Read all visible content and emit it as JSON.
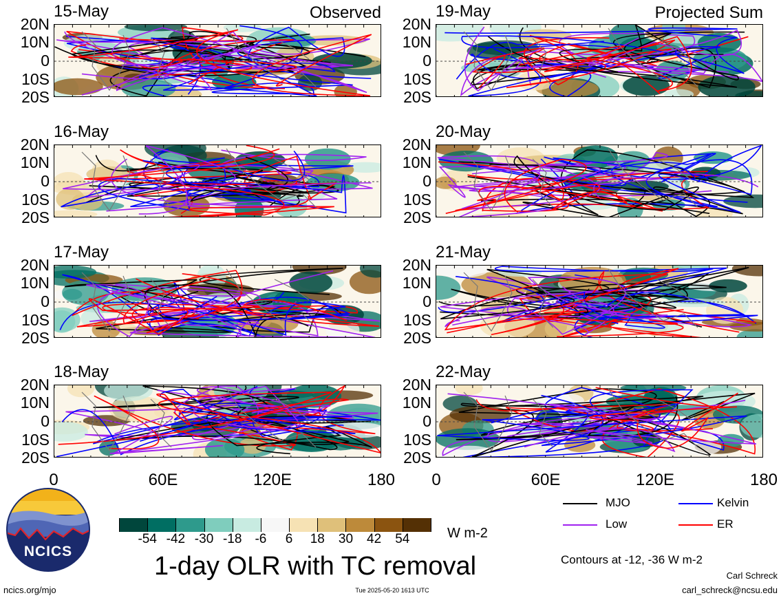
{
  "panels": [
    {
      "date": "15-May",
      "corner": "Observed"
    },
    {
      "date": "16-May",
      "corner": ""
    },
    {
      "date": "17-May",
      "corner": ""
    },
    {
      "date": "18-May",
      "corner": ""
    },
    {
      "date": "19-May",
      "corner": "Projected Sum"
    },
    {
      "date": "20-May",
      "corner": ""
    },
    {
      "date": "21-May",
      "corner": ""
    },
    {
      "date": "22-May",
      "corner": ""
    }
  ],
  "lat_labels": [
    "20N",
    "10N",
    "0",
    "10S",
    "20S"
  ],
  "lon_labels": [
    "0",
    "60E",
    "120E",
    "180"
  ],
  "colorbar": {
    "ticks": [
      "-54",
      "-42",
      "-30",
      "-18",
      "-6",
      "6",
      "18",
      "30",
      "42",
      "54"
    ],
    "colors": [
      "#00463c",
      "#006e62",
      "#2e9a8c",
      "#7fcdbd",
      "#c8ebe1",
      "#f7f7f7",
      "#f6e2b4",
      "#dfc07a",
      "#bd8a3a",
      "#8b5410",
      "#543005"
    ],
    "unit": "W m-2"
  },
  "legend": {
    "items": [
      {
        "label": "MJO",
        "color": "#000000"
      },
      {
        "label": "Kelvin",
        "color": "#0000ff"
      },
      {
        "label": "Low",
        "color": "#a020f0"
      },
      {
        "label": "ER",
        "color": "#ff0000"
      }
    ],
    "contours_note": "Contours at -12, -36 W m-2"
  },
  "title": "1-day OLR with TC removal",
  "logo_text": "NCICS",
  "footer": {
    "url": "ncics.org/mjo",
    "timestamp": "Tue 2025-05-20 1613 UTC",
    "author": "Carl Schreck",
    "email": "carl_schreck@ncsu.edu"
  }
}
